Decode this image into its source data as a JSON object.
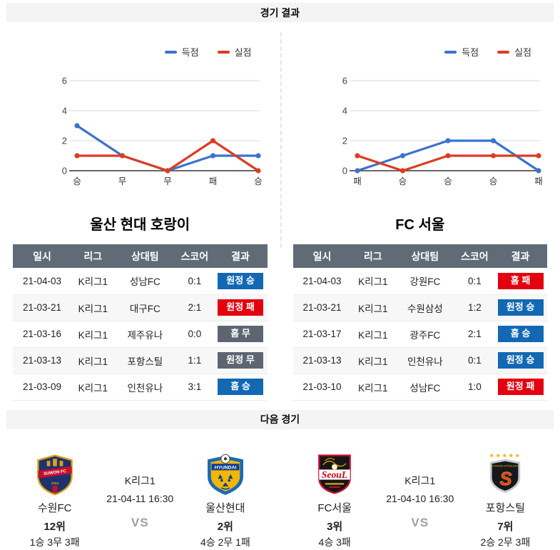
{
  "page": {
    "results_header": "경기 결과",
    "next_header": "다음 경기"
  },
  "colors": {
    "goals_for_line": "#3b72cf",
    "goals_against_line": "#dd3b22",
    "win_badge": "#1268b3",
    "loss_badge": "#e3000f",
    "draw_badge": "#5d6670",
    "table_header_bg": "#5f6b77"
  },
  "chart_data": [
    {
      "type": "line",
      "team": "울산 현대 호랑이",
      "categories": [
        "승",
        "무",
        "무",
        "패",
        "승"
      ],
      "series": [
        {
          "name": "득점",
          "color": "#3b72cf",
          "values": [
            3,
            1,
            0,
            1,
            1
          ]
        },
        {
          "name": "실점",
          "color": "#dd3b22",
          "values": [
            1,
            1,
            0,
            2,
            0
          ]
        }
      ],
      "yticks": [
        0,
        2,
        4,
        6
      ],
      "ylim": [
        0,
        6
      ],
      "legend_position": "top-right",
      "grid": true
    },
    {
      "type": "line",
      "team": "FC 서울",
      "categories": [
        "패",
        "승",
        "승",
        "승",
        "패"
      ],
      "series": [
        {
          "name": "득점",
          "color": "#3b72cf",
          "values": [
            0,
            1,
            2,
            2,
            0
          ]
        },
        {
          "name": "실점",
          "color": "#dd3b22",
          "values": [
            1,
            0,
            1,
            1,
            1
          ]
        }
      ],
      "yticks": [
        0,
        2,
        4,
        6
      ],
      "ylim": [
        0,
        6
      ],
      "legend_position": "top-right",
      "grid": true
    }
  ],
  "tables": [
    {
      "title": "울산 현대 호랑이",
      "columns": [
        "일시",
        "리그",
        "상대팀",
        "스코어",
        "결과"
      ],
      "rows": [
        {
          "date": "21-04-03",
          "league": "K리그1",
          "opponent": "성남FC",
          "score": "0:1",
          "result": "원정 승",
          "result_type": "win"
        },
        {
          "date": "21-03-21",
          "league": "K리그1",
          "opponent": "대구FC",
          "score": "2:1",
          "result": "원정 패",
          "result_type": "loss"
        },
        {
          "date": "21-03-16",
          "league": "K리그1",
          "opponent": "제주유나",
          "score": "0:0",
          "result": "홈 무",
          "result_type": "draw"
        },
        {
          "date": "21-03-13",
          "league": "K리그1",
          "opponent": "포항스틸",
          "score": "1:1",
          "result": "원정 무",
          "result_type": "draw"
        },
        {
          "date": "21-03-09",
          "league": "K리그1",
          "opponent": "인천유나",
          "score": "3:1",
          "result": "홈 승",
          "result_type": "win"
        }
      ]
    },
    {
      "title": "FC 서울",
      "columns": [
        "일시",
        "리그",
        "상대팀",
        "스코어",
        "결과"
      ],
      "rows": [
        {
          "date": "21-04-03",
          "league": "K리그1",
          "opponent": "강원FC",
          "score": "0:1",
          "result": "홈 패",
          "result_type": "loss"
        },
        {
          "date": "21-03-21",
          "league": "K리그1",
          "opponent": "수원삼성",
          "score": "1:2",
          "result": "원정 승",
          "result_type": "win"
        },
        {
          "date": "21-03-17",
          "league": "K리그1",
          "opponent": "광주FC",
          "score": "2:1",
          "result": "홈 승",
          "result_type": "win"
        },
        {
          "date": "21-03-13",
          "league": "K리그1",
          "opponent": "인천유나",
          "score": "0:1",
          "result": "원정 승",
          "result_type": "win"
        },
        {
          "date": "21-03-10",
          "league": "K리그1",
          "opponent": "성남FC",
          "score": "1:0",
          "result": "원정 패",
          "result_type": "loss"
        }
      ]
    }
  ],
  "next_matches": [
    {
      "league": "K리그1",
      "datetime": "21-04-11 16:30",
      "vs": "VS",
      "home": {
        "name": "수원FC",
        "rank": "12위",
        "record": "1승 3무 3패",
        "logo": "suwon-fc"
      },
      "away": {
        "name": "울산현대",
        "rank": "2위",
        "record": "4승 2무 1패",
        "logo": "ulsan-hyundai"
      }
    },
    {
      "league": "K리그1",
      "datetime": "21-04-10 16:30",
      "vs": "VS",
      "home": {
        "name": "FC서울",
        "rank": "3위",
        "record": "4승 3패",
        "logo": "fc-seoul"
      },
      "away": {
        "name": "포항스틸",
        "rank": "7위",
        "record": "2승 2무 3패",
        "logo": "pohang-steelers"
      }
    }
  ]
}
